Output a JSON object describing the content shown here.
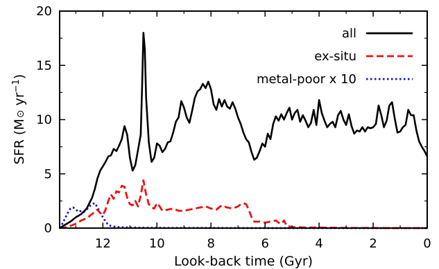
{
  "chart_data": {
    "type": "line",
    "xlabel": "Look-back time (Gyr)",
    "ylabel": {
      "prefix": "SFR (M",
      "sun": "⊙",
      "mid": " yr",
      "sup": "−1",
      "suffix": ")"
    },
    "xlim": [
      13.6,
      0
    ],
    "ylim": [
      0,
      20
    ],
    "x_ticks": [
      12,
      10,
      8,
      6,
      4,
      2,
      0
    ],
    "y_ticks": [
      0,
      5,
      10,
      15,
      20
    ],
    "legend_position": "top-right",
    "series": [
      {
        "name": "all",
        "color": "#000000",
        "style": "solid",
        "points": [
          [
            13.6,
            0
          ],
          [
            13.4,
            0.3
          ],
          [
            13.2,
            0.6
          ],
          [
            13.0,
            1.0
          ],
          [
            12.8,
            1.3
          ],
          [
            12.6,
            1.8
          ],
          [
            12.5,
            2.3
          ],
          [
            12.4,
            2.8
          ],
          [
            12.3,
            3.6
          ],
          [
            12.2,
            4.6
          ],
          [
            12.1,
            5.3
          ],
          [
            12.0,
            5.7
          ],
          [
            11.9,
            6.1
          ],
          [
            11.8,
            6.6
          ],
          [
            11.7,
            6.7
          ],
          [
            11.6,
            7.3
          ],
          [
            11.5,
            7.1
          ],
          [
            11.4,
            7.6
          ],
          [
            11.3,
            8.2
          ],
          [
            11.2,
            9.4
          ],
          [
            11.1,
            8.6
          ],
          [
            11.0,
            6.5
          ],
          [
            10.9,
            5.3
          ],
          [
            10.8,
            5.8
          ],
          [
            10.7,
            7.2
          ],
          [
            10.6,
            8.6
          ],
          [
            10.55,
            13.0
          ],
          [
            10.5,
            18.0
          ],
          [
            10.45,
            16.5
          ],
          [
            10.4,
            12.0
          ],
          [
            10.3,
            7.9
          ],
          [
            10.2,
            6.1
          ],
          [
            10.1,
            6.5
          ],
          [
            10.0,
            7.8
          ],
          [
            9.9,
            7.6
          ],
          [
            9.8,
            7.0
          ],
          [
            9.7,
            7.3
          ],
          [
            9.6,
            7.9
          ],
          [
            9.5,
            8.0
          ],
          [
            9.4,
            8.8
          ],
          [
            9.3,
            9.8
          ],
          [
            9.2,
            10.2
          ],
          [
            9.1,
            11.7
          ],
          [
            9.0,
            11.1
          ],
          [
            8.9,
            10.2
          ],
          [
            8.8,
            9.7
          ],
          [
            8.7,
            10.8
          ],
          [
            8.6,
            12.0
          ],
          [
            8.5,
            12.6
          ],
          [
            8.4,
            12.8
          ],
          [
            8.3,
            13.3
          ],
          [
            8.2,
            12.9
          ],
          [
            8.1,
            13.5
          ],
          [
            8.0,
            12.8
          ],
          [
            7.9,
            11.4
          ],
          [
            7.8,
            10.9
          ],
          [
            7.7,
            11.9
          ],
          [
            7.6,
            11.2
          ],
          [
            7.5,
            11.8
          ],
          [
            7.4,
            11.2
          ],
          [
            7.3,
            11.0
          ],
          [
            7.2,
            11.6
          ],
          [
            7.1,
            11.0
          ],
          [
            7.0,
            10.2
          ],
          [
            6.9,
            9.6
          ],
          [
            6.8,
            8.8
          ],
          [
            6.7,
            8.2
          ],
          [
            6.6,
            7.9
          ],
          [
            6.5,
            7.0
          ],
          [
            6.4,
            6.3
          ],
          [
            6.3,
            6.5
          ],
          [
            6.2,
            7.1
          ],
          [
            6.1,
            7.8
          ],
          [
            6.0,
            7.5
          ],
          [
            5.9,
            8.7
          ],
          [
            5.8,
            8.2
          ],
          [
            5.7,
            9.6
          ],
          [
            5.6,
            10.3
          ],
          [
            5.5,
            9.9
          ],
          [
            5.4,
            10.5
          ],
          [
            5.3,
            10.0
          ],
          [
            5.2,
            10.6
          ],
          [
            5.1,
            11.1
          ],
          [
            5.0,
            10.0
          ],
          [
            4.9,
            10.6
          ],
          [
            4.8,
            10.9
          ],
          [
            4.7,
            9.8
          ],
          [
            4.6,
            10.4
          ],
          [
            4.5,
            9.9
          ],
          [
            4.4,
            9.3
          ],
          [
            4.3,
            9.7
          ],
          [
            4.2,
            10.9
          ],
          [
            4.1,
            9.5
          ],
          [
            4.0,
            11.8
          ],
          [
            3.9,
            10.6
          ],
          [
            3.8,
            9.9
          ],
          [
            3.7,
            9.3
          ],
          [
            3.6,
            9.6
          ],
          [
            3.5,
            9.8
          ],
          [
            3.4,
            9.3
          ],
          [
            3.3,
            10.4
          ],
          [
            3.2,
            10.8
          ],
          [
            3.1,
            10.0
          ],
          [
            3.0,
            9.5
          ],
          [
            2.9,
            10.5
          ],
          [
            2.8,
            9.4
          ],
          [
            2.7,
            8.7
          ],
          [
            2.6,
            9.0
          ],
          [
            2.5,
            8.9
          ],
          [
            2.4,
            9.3
          ],
          [
            2.3,
            8.9
          ],
          [
            2.2,
            9.3
          ],
          [
            2.1,
            9.2
          ],
          [
            2.0,
            9.3
          ],
          [
            1.9,
            9.6
          ],
          [
            1.8,
            11.3
          ],
          [
            1.7,
            10.4
          ],
          [
            1.6,
            9.3
          ],
          [
            1.5,
            9.9
          ],
          [
            1.4,
            11.3
          ],
          [
            1.3,
            11.6
          ],
          [
            1.2,
            10.1
          ],
          [
            1.1,
            8.8
          ],
          [
            1.0,
            8.9
          ],
          [
            0.9,
            9.3
          ],
          [
            0.8,
            9.5
          ],
          [
            0.7,
            10.9
          ],
          [
            0.6,
            10.4
          ],
          [
            0.5,
            10.4
          ],
          [
            0.4,
            9.0
          ],
          [
            0.3,
            8.0
          ],
          [
            0.2,
            7.5
          ],
          [
            0.1,
            7.1
          ],
          [
            0.0,
            6.6
          ]
        ]
      },
      {
        "name": "ex-situ",
        "color": "#ee1111",
        "style": "dashed",
        "points": [
          [
            13.6,
            0
          ],
          [
            13.3,
            0.1
          ],
          [
            13.0,
            0.4
          ],
          [
            12.8,
            0.7
          ],
          [
            12.6,
            0.9
          ],
          [
            12.4,
            1.3
          ],
          [
            12.2,
            1.7
          ],
          [
            12.1,
            1.4
          ],
          [
            12.0,
            1.2
          ],
          [
            11.9,
            1.7
          ],
          [
            11.8,
            2.5
          ],
          [
            11.7,
            3.1
          ],
          [
            11.6,
            2.7
          ],
          [
            11.5,
            3.4
          ],
          [
            11.4,
            3.3
          ],
          [
            11.3,
            3.9
          ],
          [
            11.2,
            3.8
          ],
          [
            11.1,
            2.8
          ],
          [
            11.0,
            2.2
          ],
          [
            10.9,
            2.1
          ],
          [
            10.8,
            2.5
          ],
          [
            10.7,
            2.0
          ],
          [
            10.6,
            3.0
          ],
          [
            10.5,
            4.4
          ],
          [
            10.4,
            3.1
          ],
          [
            10.3,
            2.2
          ],
          [
            10.2,
            1.9
          ],
          [
            10.1,
            1.8
          ],
          [
            10.0,
            2.3
          ],
          [
            9.9,
            2.0
          ],
          [
            9.8,
            1.6
          ],
          [
            9.6,
            1.7
          ],
          [
            9.4,
            1.8
          ],
          [
            9.2,
            1.6
          ],
          [
            9.0,
            1.6
          ],
          [
            8.8,
            1.7
          ],
          [
            8.6,
            1.8
          ],
          [
            8.4,
            1.9
          ],
          [
            8.2,
            2.0
          ],
          [
            8.0,
            1.8
          ],
          [
            7.8,
            1.7
          ],
          [
            7.6,
            2.1
          ],
          [
            7.4,
            1.9
          ],
          [
            7.2,
            1.8
          ],
          [
            7.0,
            2.0
          ],
          [
            6.9,
            2.2
          ],
          [
            6.8,
            2.3
          ],
          [
            6.7,
            2.2
          ],
          [
            6.6,
            1.7
          ],
          [
            6.5,
            1.0
          ],
          [
            6.4,
            0.6
          ],
          [
            6.2,
            0.6
          ],
          [
            6.0,
            0.5
          ],
          [
            5.8,
            0.6
          ],
          [
            5.6,
            0.7
          ],
          [
            5.5,
            0.5
          ],
          [
            5.4,
            0.4
          ],
          [
            5.3,
            0.7
          ],
          [
            5.2,
            0.2
          ],
          [
            5.0,
            0.1
          ],
          [
            4.5,
            0.05
          ],
          [
            4.0,
            0.05
          ],
          [
            3.0,
            0.02
          ],
          [
            2.0,
            0.01
          ],
          [
            1.0,
            0.0
          ],
          [
            0.0,
            0.0
          ]
        ]
      },
      {
        "name": "metal-poor x 10",
        "color": "#1111cc",
        "style": "dotted",
        "points": [
          [
            13.6,
            0
          ],
          [
            13.5,
            0.4
          ],
          [
            13.4,
            0.9
          ],
          [
            13.3,
            1.4
          ],
          [
            13.2,
            1.8
          ],
          [
            13.1,
            1.9
          ],
          [
            13.0,
            1.7
          ],
          [
            12.9,
            1.5
          ],
          [
            12.8,
            1.6
          ],
          [
            12.7,
            1.5
          ],
          [
            12.6,
            1.7
          ],
          [
            12.5,
            2.0
          ],
          [
            12.4,
            2.2
          ],
          [
            12.3,
            2.3
          ],
          [
            12.2,
            1.9
          ],
          [
            12.1,
            1.4
          ],
          [
            12.0,
            1.0
          ],
          [
            11.9,
            0.6
          ],
          [
            11.8,
            0.3
          ],
          [
            11.7,
            0.2
          ],
          [
            11.5,
            0.1
          ],
          [
            11.0,
            0.05
          ],
          [
            10.0,
            0.02
          ],
          [
            8.0,
            0.01
          ],
          [
            6.0,
            0.0
          ],
          [
            4.0,
            0.0
          ],
          [
            2.0,
            0.0
          ],
          [
            0.0,
            0.0
          ]
        ]
      }
    ]
  }
}
